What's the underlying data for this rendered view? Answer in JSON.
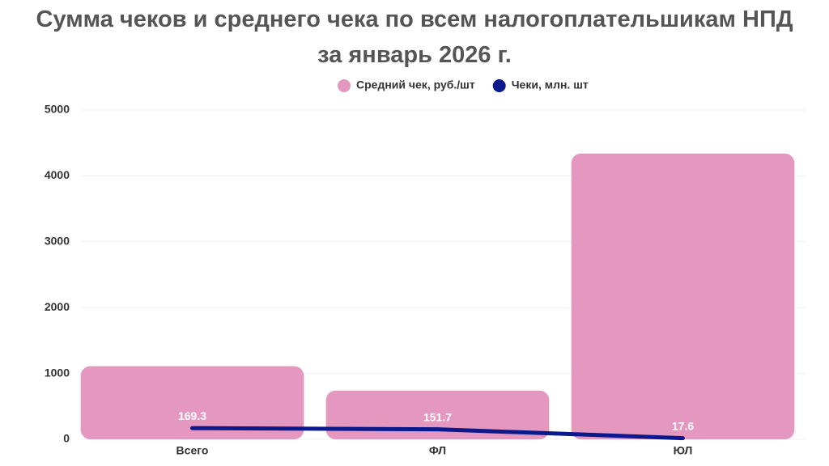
{
  "chart_data": {
    "type": "bar",
    "title": "Сумма чеков и среднего чека по всем налогоплательшикам НПД за январь 2026 г.",
    "categories": [
      "Всего",
      "ФЛ",
      "ЮЛ"
    ],
    "series": [
      {
        "name": "Средний чек, руб./шт",
        "type": "bar",
        "color": "#e598bf",
        "values": [
          1110,
          740,
          4340
        ]
      },
      {
        "name": "Чеки, млн. шт",
        "type": "line",
        "color": "#0a1a8c",
        "values": [
          169.3,
          151.7,
          17.6
        ]
      }
    ],
    "ylim": [
      0,
      5000
    ],
    "yticks": [
      0,
      1000,
      2000,
      3000,
      4000,
      5000
    ],
    "grid": true,
    "legend": "top"
  }
}
